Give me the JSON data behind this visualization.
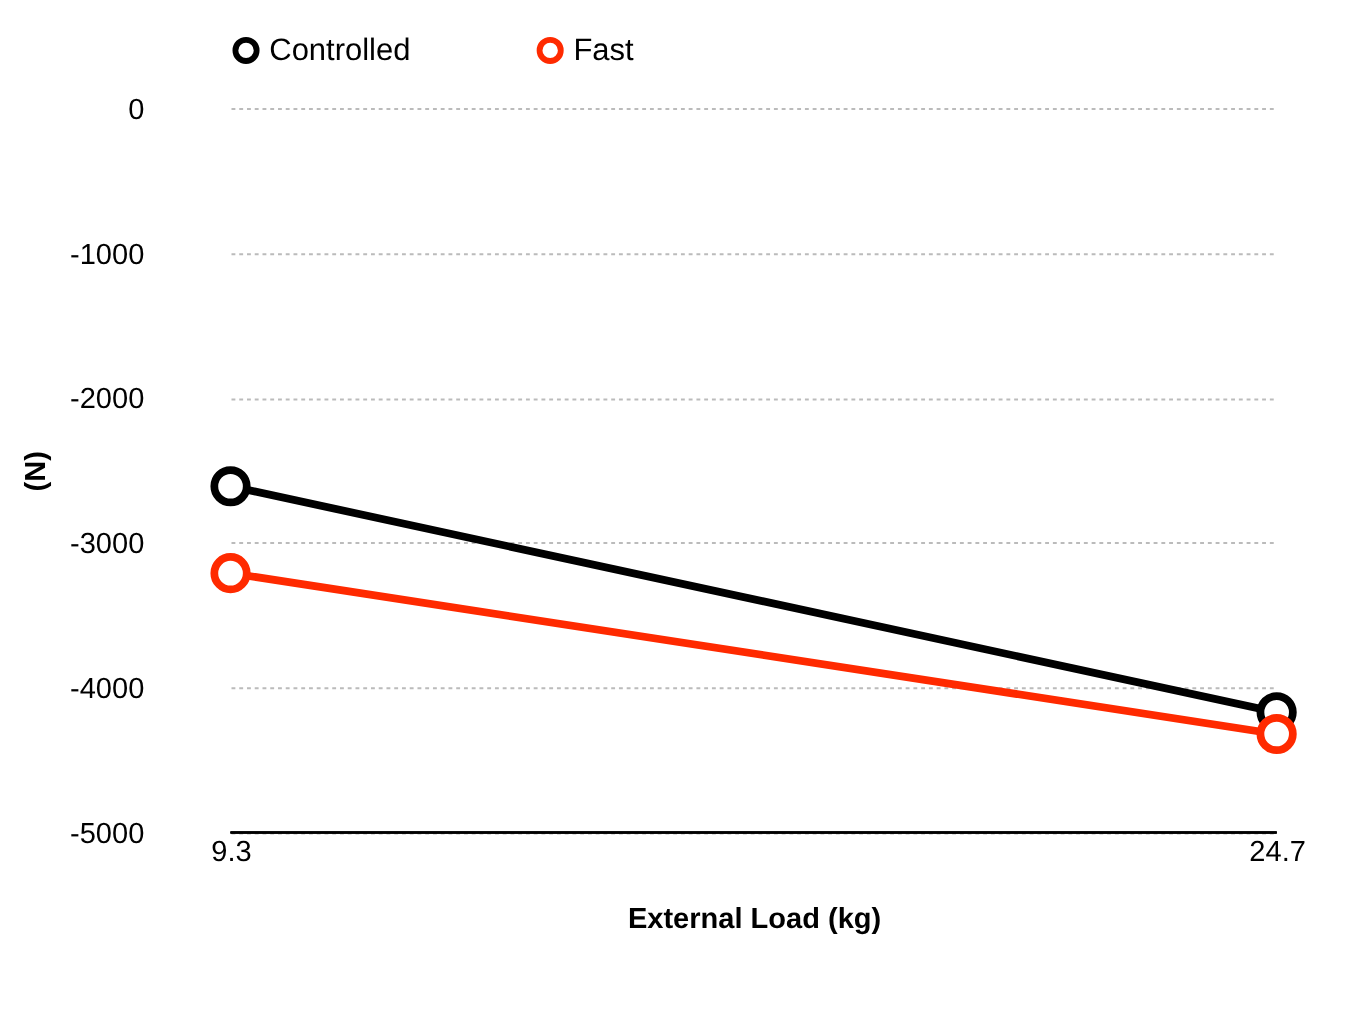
{
  "chart_data": {
    "type": "line",
    "xlabel": "External Load (kg)",
    "ylabel": "(N)",
    "x": [
      9.3,
      24.7
    ],
    "series": [
      {
        "name": "Controlled",
        "color": "#000000",
        "values": [
          -2610,
          -4170
        ]
      },
      {
        "name": "Fast",
        "color": "#ff2a00",
        "values": [
          -3210,
          -4320
        ]
      }
    ],
    "xlim": [
      9.3,
      24.7
    ],
    "xticks": [
      9.3,
      24.7
    ],
    "ylim": [
      -5000,
      0
    ],
    "yticks": [
      -5000,
      -4000,
      -3000,
      -2000,
      -1000,
      0
    ],
    "grid": "y",
    "legend": "top",
    "marker": "circle",
    "line_style": "solid"
  }
}
